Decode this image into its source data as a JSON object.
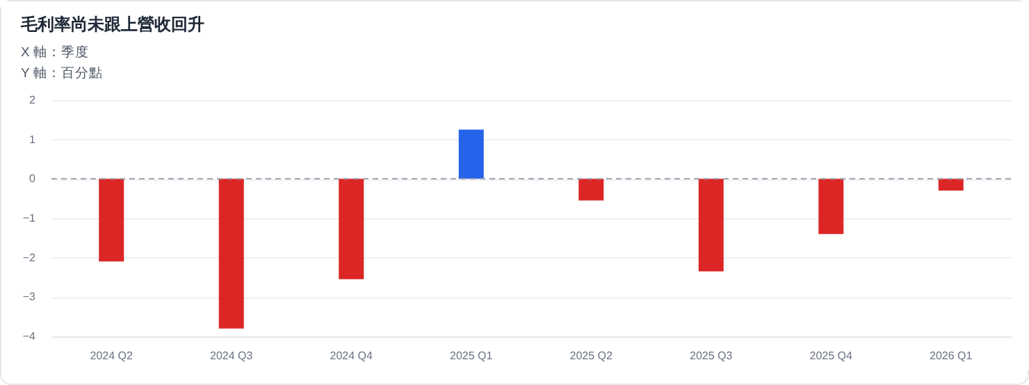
{
  "chart_data": {
    "type": "bar",
    "title": "毛利率尚未跟上營收回升",
    "xlabel": "X 軸：季度",
    "ylabel": "Y 軸：百分點",
    "categories": [
      "2024 Q2",
      "2024 Q3",
      "2024 Q4",
      "2025 Q1",
      "2025 Q2",
      "2025 Q3",
      "2025 Q4",
      "2026 Q1"
    ],
    "values": [
      -2.1,
      -3.8,
      -2.55,
      1.25,
      -0.55,
      -2.35,
      -1.4,
      -0.3
    ],
    "colors": [
      "#dc2626",
      "#dc2626",
      "#dc2626",
      "#2563eb",
      "#dc2626",
      "#dc2626",
      "#dc2626",
      "#dc2626"
    ],
    "ylim": [
      -4,
      2
    ],
    "yticks": [
      -4,
      -3,
      -2,
      -1,
      0,
      1,
      2
    ],
    "grid": "y",
    "ref_lines": [
      {
        "axis": "y",
        "value": 0,
        "line_style": "dashed",
        "color": "#9ca3af"
      }
    ]
  }
}
